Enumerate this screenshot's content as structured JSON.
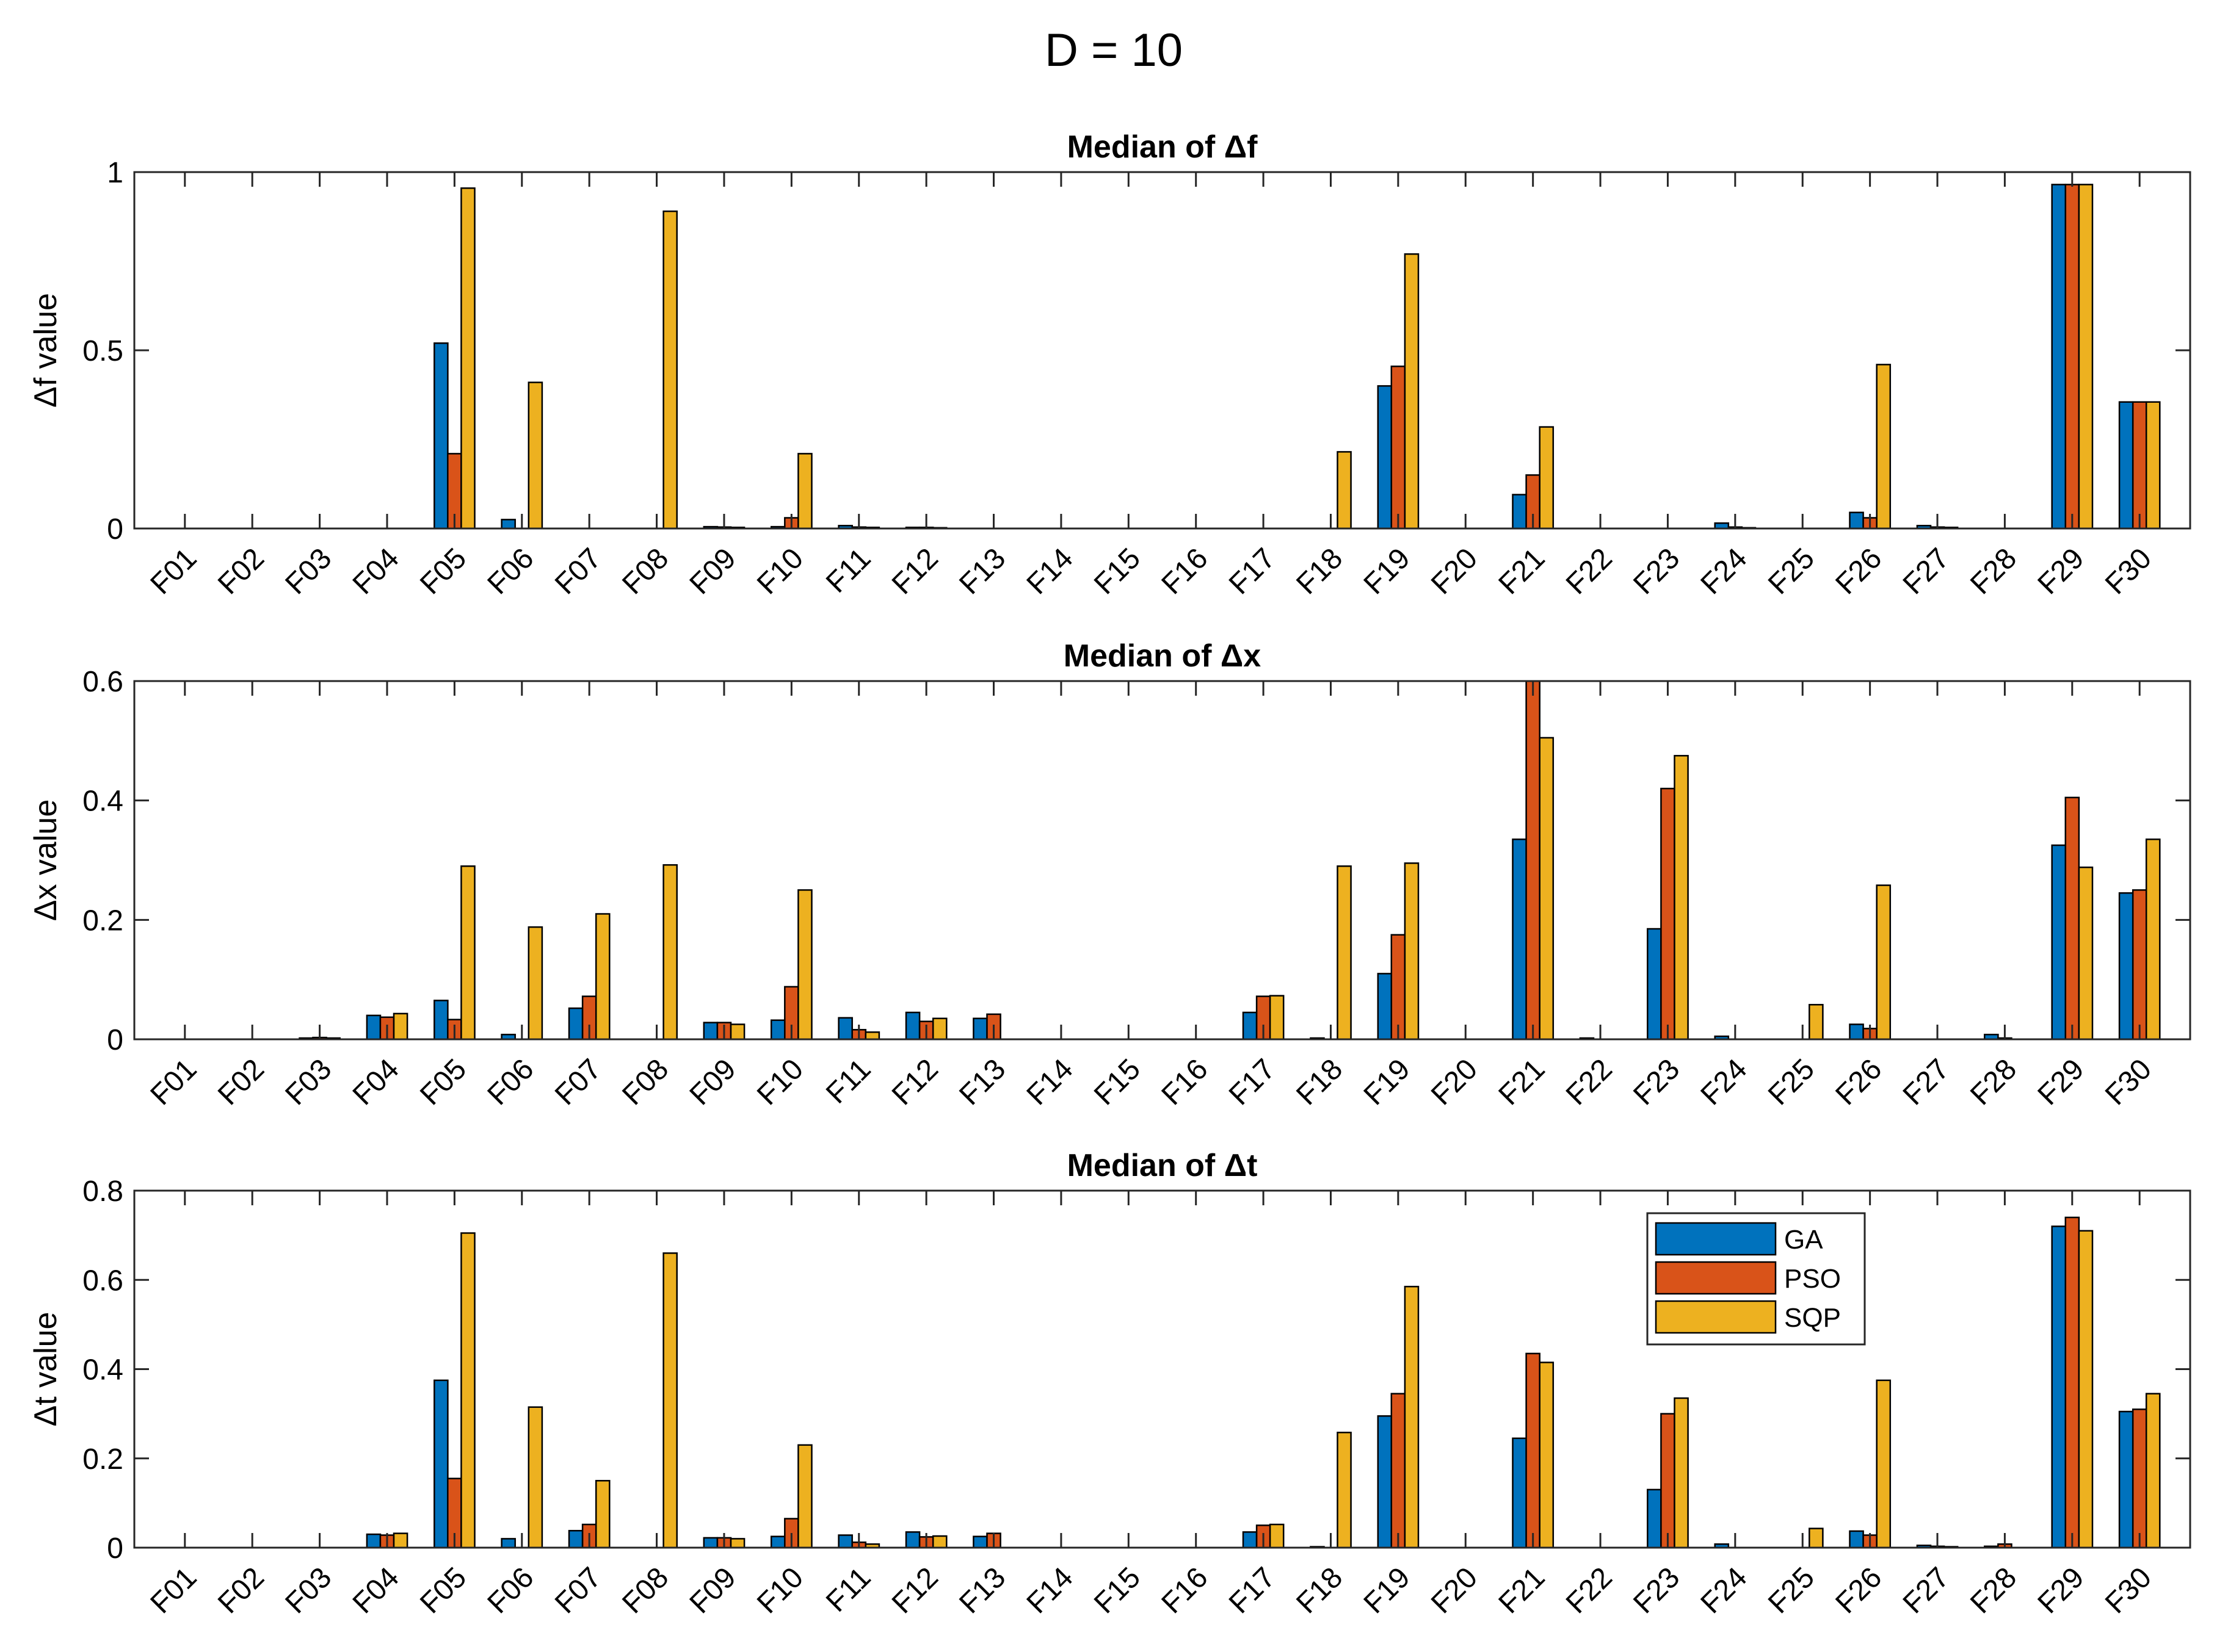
{
  "figure_title": "D = 10",
  "colors": {
    "GA": "#0072BD",
    "PSO": "#D95319",
    "SQP": "#EDB120",
    "axis": "#262626"
  },
  "chart_data": [
    {
      "type": "bar",
      "title": "Median of Δf",
      "xlabel": "",
      "ylabel": "Δf value",
      "ylim": [
        0,
        1
      ],
      "yticks": [
        0,
        0.5,
        1
      ],
      "ytick_labels": [
        "0",
        "0.5",
        "1"
      ],
      "grid": false,
      "categories": [
        "F01",
        "F02",
        "F03",
        "F04",
        "F05",
        "F06",
        "F07",
        "F08",
        "F09",
        "F10",
        "F11",
        "F12",
        "F13",
        "F14",
        "F15",
        "F16",
        "F17",
        "F18",
        "F19",
        "F20",
        "F21",
        "F22",
        "F23",
        "F24",
        "F25",
        "F26",
        "F27",
        "F28",
        "F29",
        "F30"
      ],
      "series": [
        {
          "name": "GA",
          "values": [
            0,
            0,
            0,
            0,
            0.52,
            0.025,
            0,
            0,
            0.005,
            0.005,
            0.008,
            0.003,
            0,
            0,
            0,
            0,
            0,
            0,
            0.4,
            0,
            0.095,
            0,
            0,
            0.015,
            0,
            0.045,
            0.008,
            0,
            0.965,
            0.355
          ]
        },
        {
          "name": "PSO",
          "values": [
            0,
            0,
            0,
            0,
            0.21,
            0,
            0,
            0,
            0.004,
            0.03,
            0.004,
            0.003,
            0,
            0,
            0,
            0,
            0,
            0,
            0.455,
            0,
            0.15,
            0,
            0,
            0.004,
            0,
            0.03,
            0.004,
            0,
            0.965,
            0.355
          ]
        },
        {
          "name": "SQP",
          "values": [
            0,
            0,
            0,
            0,
            0.955,
            0.41,
            0,
            0.89,
            0.003,
            0.21,
            0.003,
            0.002,
            0,
            0,
            0,
            0,
            0,
            0.215,
            0.77,
            0,
            0.285,
            0,
            0,
            0.002,
            0,
            0.46,
            0.003,
            0,
            0.965,
            0.355
          ]
        }
      ]
    },
    {
      "type": "bar",
      "title": "Median of Δx",
      "xlabel": "",
      "ylabel": "Δx value",
      "ylim": [
        0,
        0.6
      ],
      "yticks": [
        0,
        0.2,
        0.4,
        0.6
      ],
      "ytick_labels": [
        "0",
        "0.2",
        "0.4",
        "0.6"
      ],
      "grid": false,
      "categories": [
        "F01",
        "F02",
        "F03",
        "F04",
        "F05",
        "F06",
        "F07",
        "F08",
        "F09",
        "F10",
        "F11",
        "F12",
        "F13",
        "F14",
        "F15",
        "F16",
        "F17",
        "F18",
        "F19",
        "F20",
        "F21",
        "F22",
        "F23",
        "F24",
        "F25",
        "F26",
        "F27",
        "F28",
        "F29",
        "F30"
      ],
      "series": [
        {
          "name": "GA",
          "values": [
            0,
            0,
            0.002,
            0.04,
            0.065,
            0.008,
            0.052,
            0,
            0.028,
            0.032,
            0.036,
            0.045,
            0.035,
            0,
            0,
            0,
            0.045,
            0.002,
            0.11,
            0,
            0.335,
            0.002,
            0.185,
            0.005,
            0,
            0.025,
            0,
            0.008,
            0.325,
            0.245
          ]
        },
        {
          "name": "PSO",
          "values": [
            0,
            0,
            0.003,
            0.037,
            0.033,
            0,
            0.072,
            0,
            0.028,
            0.088,
            0.016,
            0.03,
            0.042,
            0,
            0,
            0,
            0.072,
            0,
            0.175,
            0,
            0.6,
            0,
            0.42,
            0,
            0,
            0.018,
            0,
            0.002,
            0.405,
            0.25
          ]
        },
        {
          "name": "SQP",
          "values": [
            0,
            0,
            0.002,
            0.043,
            0.29,
            0.188,
            0.21,
            0.292,
            0.025,
            0.25,
            0.012,
            0.035,
            0,
            0,
            0,
            0,
            0.073,
            0.29,
            0.295,
            0,
            0.505,
            0,
            0.475,
            0,
            0.058,
            0.258,
            0,
            0,
            0.288,
            0.335
          ]
        }
      ]
    },
    {
      "type": "bar",
      "title": "Median of Δt",
      "xlabel": "",
      "ylabel": "Δt value",
      "ylim": [
        0,
        0.8
      ],
      "yticks": [
        0,
        0.2,
        0.4,
        0.6,
        0.8
      ],
      "ytick_labels": [
        "0",
        "0.2",
        "0.4",
        "0.6",
        "0.8"
      ],
      "grid": false,
      "legend": {
        "position": "top-right",
        "entries": [
          "GA",
          "PSO",
          "SQP"
        ]
      },
      "categories": [
        "F01",
        "F02",
        "F03",
        "F04",
        "F05",
        "F06",
        "F07",
        "F08",
        "F09",
        "F10",
        "F11",
        "F12",
        "F13",
        "F14",
        "F15",
        "F16",
        "F17",
        "F18",
        "F19",
        "F20",
        "F21",
        "F22",
        "F23",
        "F24",
        "F25",
        "F26",
        "F27",
        "F28",
        "F29",
        "F30"
      ],
      "series": [
        {
          "name": "GA",
          "values": [
            0,
            0,
            0,
            0.03,
            0.375,
            0.02,
            0.038,
            0,
            0.022,
            0.025,
            0.028,
            0.035,
            0.025,
            0,
            0,
            0,
            0.035,
            0.002,
            0.295,
            0,
            0.245,
            0,
            0.13,
            0.008,
            0,
            0.037,
            0.005,
            0.003,
            0.72,
            0.305
          ]
        },
        {
          "name": "PSO",
          "values": [
            0,
            0,
            0,
            0.028,
            0.155,
            0,
            0.052,
            0,
            0.022,
            0.065,
            0.012,
            0.024,
            0.032,
            0,
            0,
            0,
            0.05,
            0,
            0.345,
            0,
            0.435,
            0,
            0.3,
            0,
            0,
            0.028,
            0.003,
            0.008,
            0.74,
            0.31
          ]
        },
        {
          "name": "SQP",
          "values": [
            0,
            0,
            0,
            0.032,
            0.705,
            0.315,
            0.15,
            0.66,
            0.02,
            0.23,
            0.008,
            0.026,
            0,
            0,
            0,
            0,
            0.052,
            0.258,
            0.585,
            0,
            0.415,
            0,
            0.335,
            0,
            0.043,
            0.375,
            0.002,
            0,
            0.71,
            0.345
          ]
        }
      ]
    }
  ]
}
